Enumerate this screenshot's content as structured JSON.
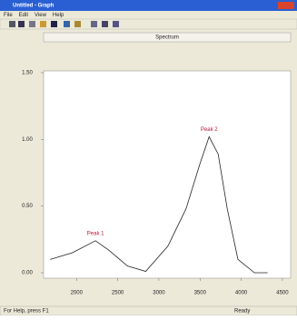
{
  "window": {
    "title": "Untitled - Graph",
    "menu": [
      "File",
      "Edit",
      "View",
      "Help"
    ],
    "header": "Spectrum",
    "status_left": "For Help, press F1",
    "status_right": "Ready"
  },
  "chart_data": {
    "type": "line",
    "x": [
      1680,
      1950,
      2230,
      2390,
      2620,
      2840,
      3110,
      3330,
      3500,
      3610,
      3720,
      3830,
      3960,
      4160,
      4320
    ],
    "series": [
      {
        "color": "#222222",
        "values": [
          0.1,
          0.15,
          0.24,
          0.17,
          0.05,
          0.01,
          0.2,
          0.48,
          0.82,
          1.02,
          0.89,
          0.48,
          0.1,
          0.0,
          0.0
        ]
      }
    ],
    "xlim": [
      1600,
      4600
    ],
    "xticks": [
      2000,
      2500,
      3000,
      3500,
      4000,
      4500
    ],
    "ylim": [
      0,
      1.5
    ],
    "yticks": [
      {
        "value": 0,
        "label": "0.00"
      },
      {
        "value": 0.5,
        "label": "0.50"
      },
      {
        "value": 1,
        "label": "1.00"
      },
      {
        "value": 1.5,
        "label": "1.50"
      }
    ],
    "annotations": [
      {
        "text": "Peak 1",
        "x": 2230,
        "y": 0.24
      },
      {
        "text": "Peak 2",
        "x": 3610,
        "y": 1.02
      }
    ]
  }
}
